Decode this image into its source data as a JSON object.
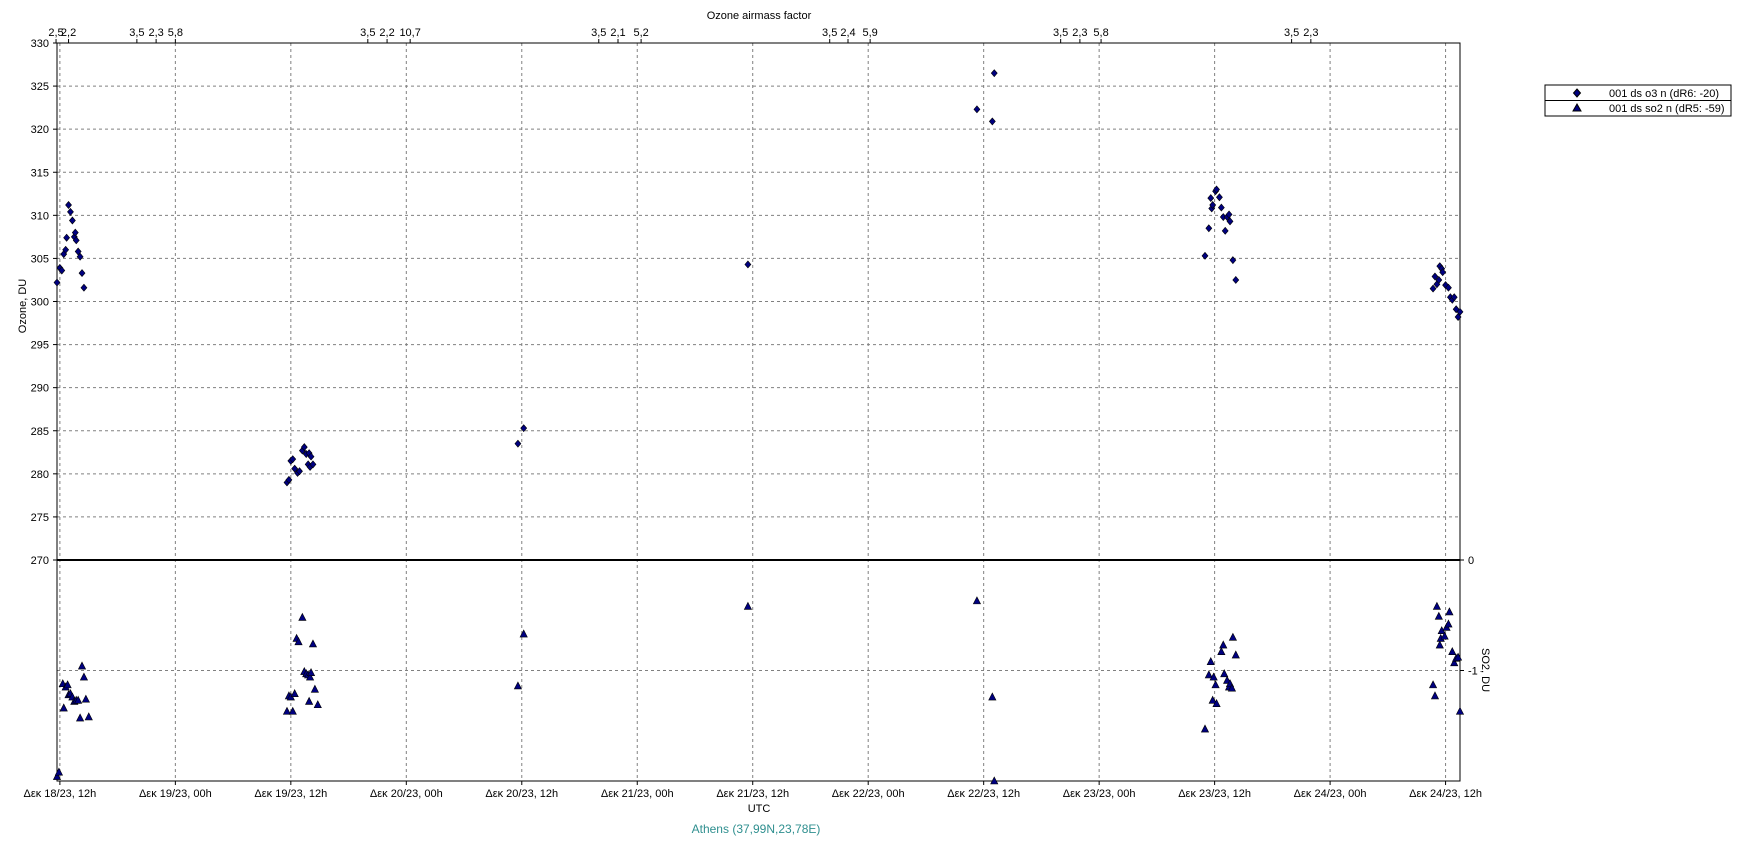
{
  "chart_data": {
    "type": "scatter",
    "top_axis_title": "Ozone airmass factor",
    "xlabel": "UTC",
    "location": "Athens (37,99N,23,78E)",
    "x_ticks": [
      "Δεκ 18/23, 12h",
      "Δεκ 19/23, 00h",
      "Δεκ 19/23, 12h",
      "Δεκ 20/23, 00h",
      "Δεκ 20/23, 12h",
      "Δεκ 21/23, 00h",
      "Δεκ 21/23, 12h",
      "Δεκ 22/23, 00h",
      "Δεκ 22/23, 12h",
      "Δεκ 23/23, 00h",
      "Δεκ 23/23, 12h",
      "Δεκ 24/23, 00h",
      "Δεκ 24/23, 12h"
    ],
    "x_range": [
      "Δεκ 18/23, 11.7h",
      "Δεκ 24/23, 12.1h"
    ],
    "airmass_ticks": [
      {
        "hours_from_start": -0.4,
        "label": "2,5"
      },
      {
        "hours_from_start": 0.9,
        "label": "2,2"
      },
      {
        "hours_from_start": 8.0,
        "label": "3,5"
      },
      {
        "hours_from_start": 10.0,
        "label": "2,3"
      },
      {
        "hours_from_start": 12.0,
        "label": "5,8"
      },
      {
        "hours_from_start": 32.0,
        "label": "3,5"
      },
      {
        "hours_from_start": 34.0,
        "label": "2,2"
      },
      {
        "hours_from_start": 36.4,
        "label": "10,7"
      },
      {
        "hours_from_start": 56.0,
        "label": "3,5"
      },
      {
        "hours_from_start": 58.0,
        "label": "2,1"
      },
      {
        "hours_from_start": 60.4,
        "label": "5,2"
      },
      {
        "hours_from_start": 80.0,
        "label": "3,5"
      },
      {
        "hours_from_start": 81.9,
        "label": "2,4"
      },
      {
        "hours_from_start": 84.2,
        "label": "5,9"
      },
      {
        "hours_from_start": 104.0,
        "label": "3,5"
      },
      {
        "hours_from_start": 106.0,
        "label": "2,3"
      },
      {
        "hours_from_start": 108.2,
        "label": "5,8"
      },
      {
        "hours_from_start": 128.0,
        "label": "3,5"
      },
      {
        "hours_from_start": 130.0,
        "label": "2,3"
      }
    ],
    "ozone_axis": {
      "label": "Ozone, DU",
      "ylim": [
        270,
        330
      ],
      "ticks": [
        "330",
        "325",
        "320",
        "315",
        "310",
        "305",
        "300",
        "295",
        "290",
        "285",
        "280",
        "275",
        "270"
      ]
    },
    "so2_axis": {
      "label": "SO2, DU",
      "ylim": [
        -2,
        0
      ],
      "ticks": [
        "0",
        "-1"
      ]
    },
    "grid": true,
    "legend_position": "top-right, outside plot",
    "series": [
      {
        "name": "001 ds o3  n (dR6: -20)",
        "marker": "diamond",
        "color": "#000080",
        "panel": "ozone",
        "points": [
          [
            -0.3,
            302.2
          ],
          [
            0.0,
            303.9
          ],
          [
            0.2,
            303.6
          ],
          [
            0.4,
            305.5
          ],
          [
            0.6,
            306.0
          ],
          [
            0.7,
            307.4
          ],
          [
            0.9,
            311.2
          ],
          [
            1.1,
            310.4
          ],
          [
            1.3,
            309.4
          ],
          [
            1.5,
            307.5
          ],
          [
            1.6,
            308.0
          ],
          [
            1.7,
            307.1
          ],
          [
            1.9,
            305.8
          ],
          [
            2.1,
            305.2
          ],
          [
            2.3,
            303.3
          ],
          [
            2.5,
            301.6
          ],
          [
            23.6,
            279.0
          ],
          [
            23.8,
            279.3
          ],
          [
            24.0,
            281.5
          ],
          [
            24.2,
            281.7
          ],
          [
            24.4,
            280.6
          ],
          [
            24.7,
            280.1
          ],
          [
            24.9,
            280.3
          ],
          [
            25.2,
            282.7
          ],
          [
            25.4,
            283.1
          ],
          [
            25.6,
            282.3
          ],
          [
            25.9,
            282.4
          ],
          [
            26.1,
            282.0
          ],
          [
            25.8,
            281.1
          ],
          [
            26.0,
            280.8
          ],
          [
            26.3,
            281.1
          ],
          [
            47.6,
            283.5
          ],
          [
            48.2,
            285.3
          ],
          [
            71.5,
            304.3
          ],
          [
            95.3,
            322.3
          ],
          [
            96.9,
            320.9
          ],
          [
            97.1,
            326.5
          ],
          [
            119.0,
            305.3
          ],
          [
            119.4,
            308.5
          ],
          [
            119.6,
            312.0
          ],
          [
            119.7,
            310.8
          ],
          [
            119.8,
            311.2
          ],
          [
            120.1,
            312.8
          ],
          [
            120.2,
            313.0
          ],
          [
            120.5,
            312.1
          ],
          [
            120.7,
            310.9
          ],
          [
            120.9,
            309.8
          ],
          [
            121.1,
            308.2
          ],
          [
            121.3,
            309.8
          ],
          [
            121.5,
            310.1
          ],
          [
            121.6,
            309.3
          ],
          [
            121.9,
            304.8
          ],
          [
            122.2,
            302.5
          ],
          [
            142.7,
            301.5
          ],
          [
            142.9,
            302.9
          ],
          [
            143.1,
            302.0
          ],
          [
            143.3,
            302.5
          ],
          [
            143.4,
            304.1
          ],
          [
            143.6,
            303.8
          ],
          [
            143.7,
            303.4
          ],
          [
            144.0,
            301.9
          ],
          [
            144.3,
            301.6
          ],
          [
            144.5,
            300.5
          ],
          [
            144.7,
            300.2
          ],
          [
            144.9,
            300.5
          ],
          [
            145.1,
            299.1
          ],
          [
            145.3,
            298.2
          ],
          [
            145.5,
            298.8
          ]
        ]
      },
      {
        "name": "001 ds so2 n (dR5: -59)",
        "marker": "triangle",
        "color": "#000080",
        "panel": "so2",
        "points": [
          [
            -0.3,
            -1.96
          ],
          [
            -0.1,
            -1.92
          ],
          [
            0.3,
            -1.12
          ],
          [
            0.6,
            -1.15
          ],
          [
            0.8,
            -1.13
          ],
          [
            0.4,
            -1.34
          ],
          [
            0.9,
            -1.22
          ],
          [
            1.1,
            -1.21
          ],
          [
            1.3,
            -1.24
          ],
          [
            1.5,
            -1.28
          ],
          [
            1.7,
            -1.27
          ],
          [
            1.9,
            -1.27
          ],
          [
            2.1,
            -1.43
          ],
          [
            2.3,
            -0.96
          ],
          [
            2.5,
            -1.06
          ],
          [
            2.7,
            -1.26
          ],
          [
            3.0,
            -1.42
          ],
          [
            23.6,
            -1.37
          ],
          [
            23.8,
            -1.23
          ],
          [
            24.0,
            -1.24
          ],
          [
            24.2,
            -1.37
          ],
          [
            24.4,
            -1.21
          ],
          [
            24.6,
            -0.71
          ],
          [
            24.8,
            -0.74
          ],
          [
            25.2,
            -0.52
          ],
          [
            25.4,
            -1.01
          ],
          [
            25.6,
            -1.03
          ],
          [
            25.8,
            -1.04
          ],
          [
            25.9,
            -1.28
          ],
          [
            26.0,
            -1.06
          ],
          [
            26.1,
            -1.02
          ],
          [
            26.3,
            -0.76
          ],
          [
            26.5,
            -1.17
          ],
          [
            26.8,
            -1.31
          ],
          [
            47.6,
            -1.14
          ],
          [
            48.2,
            -0.67
          ],
          [
            71.5,
            -0.42
          ],
          [
            95.3,
            -0.37
          ],
          [
            96.9,
            -1.24
          ],
          [
            97.1,
            -2.0
          ],
          [
            119.0,
            -1.53
          ],
          [
            119.4,
            -1.04
          ],
          [
            119.6,
            -0.92
          ],
          [
            119.8,
            -1.27
          ],
          [
            119.9,
            -1.06
          ],
          [
            120.1,
            -1.13
          ],
          [
            120.2,
            -1.3
          ],
          [
            120.7,
            -0.83
          ],
          [
            120.9,
            -0.77
          ],
          [
            121.0,
            -1.03
          ],
          [
            121.3,
            -1.09
          ],
          [
            121.5,
            -1.15
          ],
          [
            121.6,
            -1.12
          ],
          [
            121.8,
            -1.16
          ],
          [
            121.9,
            -0.7
          ],
          [
            122.2,
            -0.86
          ],
          [
            142.7,
            -1.13
          ],
          [
            142.9,
            -1.23
          ],
          [
            143.1,
            -0.42
          ],
          [
            143.3,
            -0.51
          ],
          [
            143.4,
            -0.77
          ],
          [
            143.5,
            -0.71
          ],
          [
            143.6,
            -0.64
          ],
          [
            143.9,
            -0.69
          ],
          [
            144.1,
            -0.61
          ],
          [
            144.3,
            -0.58
          ],
          [
            144.4,
            -0.47
          ],
          [
            144.7,
            -0.83
          ],
          [
            144.9,
            -0.93
          ],
          [
            145.1,
            -0.89
          ],
          [
            145.3,
            -0.88
          ],
          [
            145.5,
            -1.37
          ]
        ]
      }
    ]
  }
}
